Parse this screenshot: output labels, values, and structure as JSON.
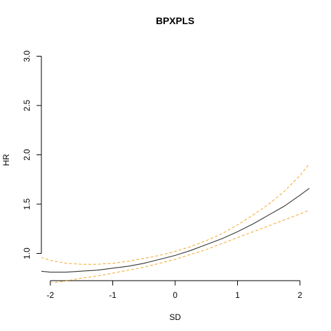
{
  "chart_data": {
    "type": "line",
    "title": "BPXPLS",
    "xlabel": "SD",
    "ylabel": "HR",
    "xlim": [
      -2.2,
      2.2
    ],
    "ylim": [
      0.72,
      3.0
    ],
    "x_ticks": [
      -2,
      -1,
      0,
      1,
      2
    ],
    "x_tick_labels": [
      "-2",
      "-1",
      "0",
      "1",
      "2"
    ],
    "y_ticks": [
      1.0,
      1.5,
      2.0,
      2.5,
      3.0
    ],
    "y_tick_labels": [
      "1.0",
      "1.5",
      "2.0",
      "2.5",
      "3.0"
    ],
    "grid": false,
    "series": [
      {
        "role": "estimate",
        "color": "#333333",
        "style": "solid",
        "x": [
          -2.15,
          -2.0,
          -1.75,
          -1.5,
          -1.25,
          -1.0,
          -0.75,
          -0.5,
          -0.25,
          0.0,
          0.25,
          0.5,
          0.75,
          1.0,
          1.25,
          1.5,
          1.75,
          2.0,
          2.15
        ],
        "y": [
          0.82,
          0.81,
          0.81,
          0.82,
          0.83,
          0.85,
          0.87,
          0.9,
          0.94,
          0.98,
          1.03,
          1.09,
          1.15,
          1.22,
          1.3,
          1.39,
          1.48,
          1.59,
          1.66
        ]
      },
      {
        "role": "upper-ci",
        "color": "#F5A623",
        "style": "dashed",
        "x": [
          -2.15,
          -2.0,
          -1.75,
          -1.5,
          -1.25,
          -1.0,
          -0.75,
          -0.5,
          -0.25,
          0.0,
          0.25,
          0.5,
          0.75,
          1.0,
          1.25,
          1.5,
          1.75,
          2.0,
          2.15
        ],
        "y": [
          0.96,
          0.93,
          0.9,
          0.89,
          0.89,
          0.9,
          0.92,
          0.95,
          0.98,
          1.02,
          1.07,
          1.13,
          1.2,
          1.29,
          1.39,
          1.5,
          1.63,
          1.79,
          1.91
        ]
      },
      {
        "role": "lower-ci",
        "color": "#F5A623",
        "style": "dashed",
        "x": [
          -2.0,
          -1.75,
          -1.5,
          -1.25,
          -1.0,
          -0.75,
          -0.5,
          -0.25,
          0.0,
          0.25,
          0.5,
          0.75,
          1.0,
          1.25,
          1.5,
          1.75,
          2.0,
          2.15
        ],
        "y": [
          0.7,
          0.72,
          0.75,
          0.77,
          0.8,
          0.83,
          0.86,
          0.9,
          0.94,
          0.99,
          1.04,
          1.1,
          1.16,
          1.22,
          1.28,
          1.34,
          1.4,
          1.44
        ]
      }
    ]
  }
}
